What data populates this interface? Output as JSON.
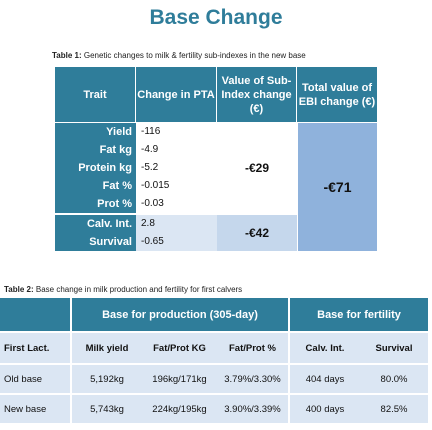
{
  "title": "Base Change",
  "table1": {
    "caption_label": "Table 1:",
    "caption_text": " Genetic changes to milk & fertility sub-indexes in the new base",
    "headers": {
      "trait": "Trait",
      "pta": "Change in PTA",
      "subindex": "Value of Sub-Index change (€)",
      "ebi": "Total value of EBI change (€)"
    },
    "rows": [
      {
        "trait": "Yield",
        "pta": "-116"
      },
      {
        "trait": "Fat kg",
        "pta": "-4.9"
      },
      {
        "trait": "Protein kg",
        "pta": "-5.2"
      },
      {
        "trait": "Fat %",
        "pta": "-0.015"
      },
      {
        "trait": "Prot %",
        "pta": "-0.03"
      },
      {
        "trait": "Calv. Int.",
        "pta": "2.8"
      },
      {
        "trait": "Survival",
        "pta": "-0.65"
      }
    ],
    "milk_subindex": "-€29",
    "fertility_subindex": "-€42",
    "total_ebi": "-€71"
  },
  "table2": {
    "caption_label": "Table 2:",
    "caption_text": " Base change in milk production  and fertility for first calvers",
    "group_production": "Base for production  (305-day)",
    "group_fertility": "Base for fertility",
    "columns": [
      "First Lact.",
      "Milk yield",
      "Fat/Prot KG",
      "Fat/Prot %",
      "Calv. Int.",
      "Survival"
    ],
    "rows": [
      [
        "Old base",
        "5,192kg",
        "196kg/171kg",
        "3.79%/3.30%",
        "404 days",
        "80.0%"
      ],
      [
        "New base",
        "5,743kg",
        "224kg/195kg",
        "3.90%/3.39%",
        "400 days",
        "82.5%"
      ]
    ]
  },
  "colors": {
    "header_teal": "#2f7d9a",
    "light_blue": "#dbe6f3",
    "mid_blue": "#c5d7ec",
    "ebi_blue": "#8fb2dc"
  }
}
